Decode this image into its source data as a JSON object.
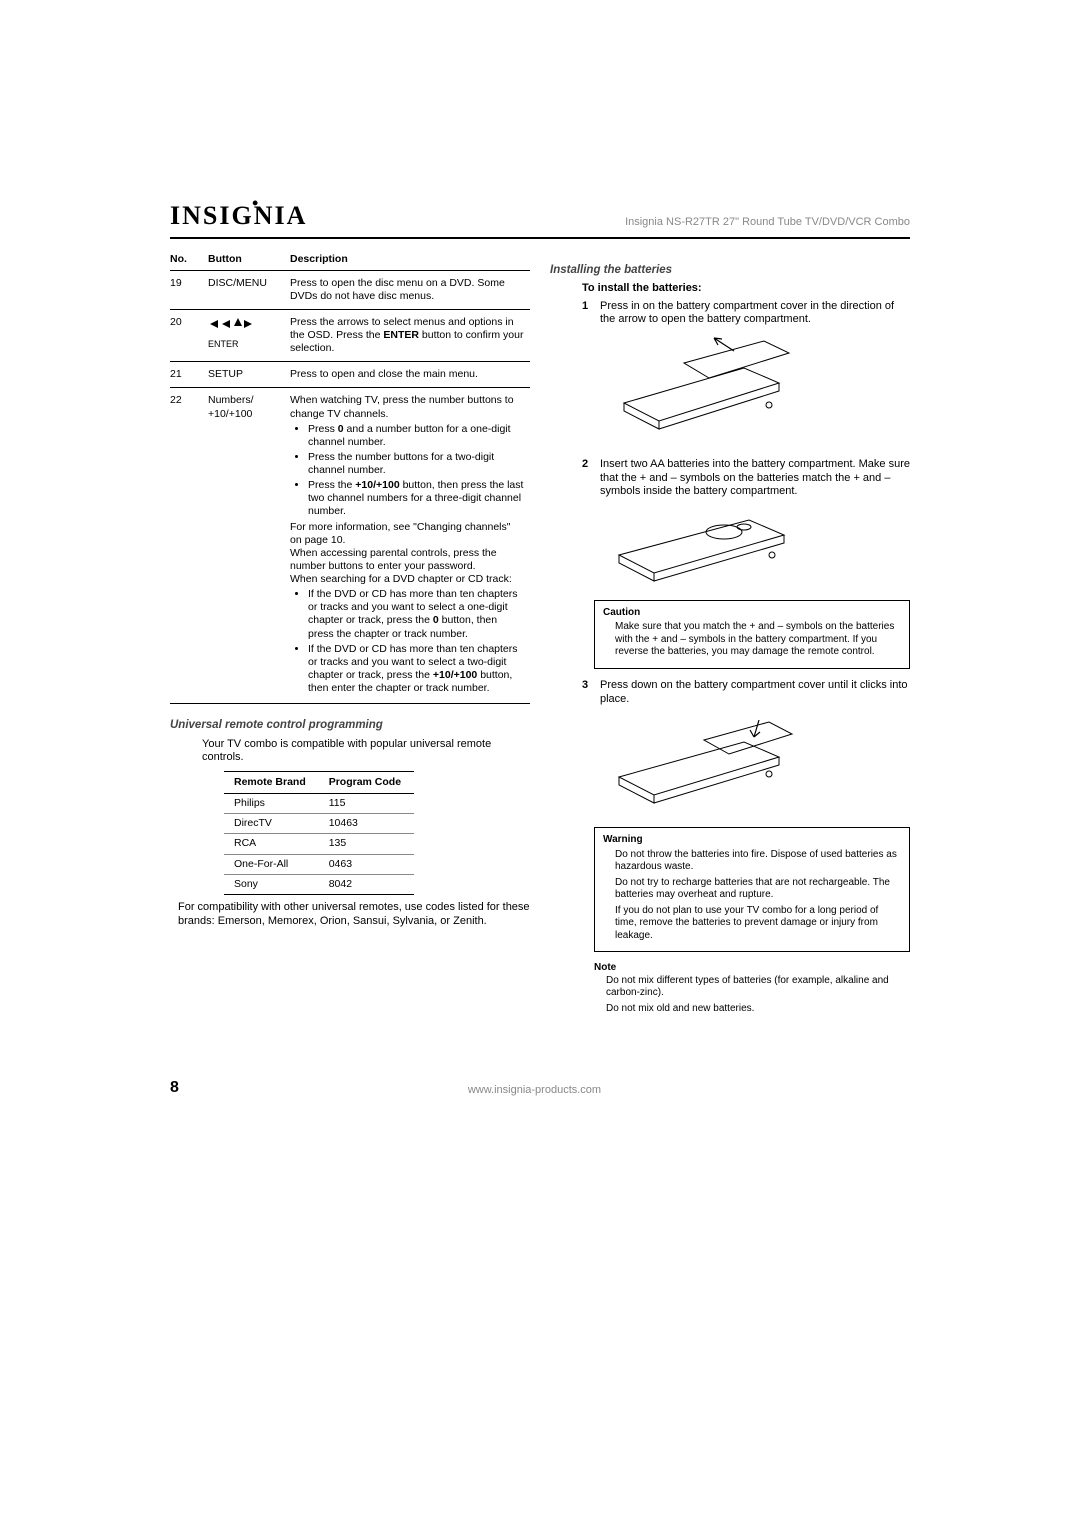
{
  "header": {
    "logo": "INSIGNIA",
    "logo_dot": "•",
    "subtitle": "Insignia NS-R27TR 27\" Round Tube TV/DVD/VCR Combo"
  },
  "button_table": {
    "headers": [
      "No.",
      "Button",
      "Description"
    ],
    "rows": [
      {
        "no": "19",
        "button": "DISC/MENU",
        "desc_html": "Press to open the disc menu on a DVD. Some DVDs do not have disc menus."
      },
      {
        "no": "20",
        "button": "ENTER",
        "is_enter": true,
        "desc_html": "Press the arrows to select menus and options in the OSD. Press the <b>ENTER</b> button to confirm your selection."
      },
      {
        "no": "21",
        "button": "SETUP",
        "desc_html": "Press to open and close the main menu."
      },
      {
        "no": "22",
        "button": "Numbers/<br>+10/+100",
        "desc_html": "When watching TV, press the number buttons to change TV channels.<ul><li>Press <b>0</b> and a number button for a one-digit channel number.</li><li>Press the number buttons for a two-digit channel number.</li><li>Press the <b>+10/+100</b> button, then press the last two channel numbers for a three-digit channel number.</li></ul>For more information, see \"Changing channels\" on page 10.<br>When accessing parental controls, press the number buttons to enter your password.<br>When searching for a DVD chapter or CD track:<ul><li>If the DVD or CD has more than ten chapters or tracks and you want to select a one-digit chapter or track, press the <b>0</b> button, then press the chapter or track number.</li><li>If the DVD or CD has more than ten chapters or tracks and you want to select a two-digit chapter or track, press the <b>+10/+100</b> button, then enter the chapter or track number.</li></ul>"
      }
    ]
  },
  "universal": {
    "heading": "Universal remote control programming",
    "intro": "Your TV combo is compatible with popular universal remote controls.",
    "table_headers": [
      "Remote Brand",
      "Program Code"
    ],
    "rows": [
      [
        "Philips",
        "115"
      ],
      [
        "DirecTV",
        "10463"
      ],
      [
        "RCA",
        "135"
      ],
      [
        "One-For-All",
        "0463"
      ],
      [
        "Sony",
        "8042"
      ]
    ],
    "note": "For compatibility with other universal remotes, use codes listed for these brands: Emerson, Memorex, Orion, Sansui, Sylvania, or Zenith."
  },
  "batteries": {
    "heading": "Installing the batteries",
    "subheading": "To install the batteries:",
    "steps": [
      "Press in on the battery compartment cover in the direction of the arrow to open the battery compartment.",
      "Insert two AA batteries into the battery compartment. Make sure that the + and – symbols on the batteries match the + and – symbols inside the battery compartment.",
      "Press down on the battery compartment cover until it clicks into place."
    ],
    "caution_title": "Caution",
    "caution_text": "Make sure that you match the + and – symbols on the batteries with the + and – symbols in the battery compartment. If you reverse the batteries, you may damage the remote control.",
    "warning_title": "Warning",
    "warning_lines": [
      "Do not throw the batteries into fire. Dispose of used batteries as hazardous waste.",
      "Do not try to recharge batteries that are not rechargeable. The batteries may overheat and rupture.",
      "If you do not plan to use your TV combo for a long period of time, remove the batteries to prevent damage or injury from leakage."
    ],
    "note_title": "Note",
    "note_lines": [
      "Do not mix different types of batteries (for example, alkaline and carbon-zinc).",
      "Do not mix old and new batteries."
    ]
  },
  "footer": {
    "page": "8",
    "url": "www.insignia-products.com"
  },
  "colors": {
    "muted": "#888888",
    "rule": "#000000"
  }
}
